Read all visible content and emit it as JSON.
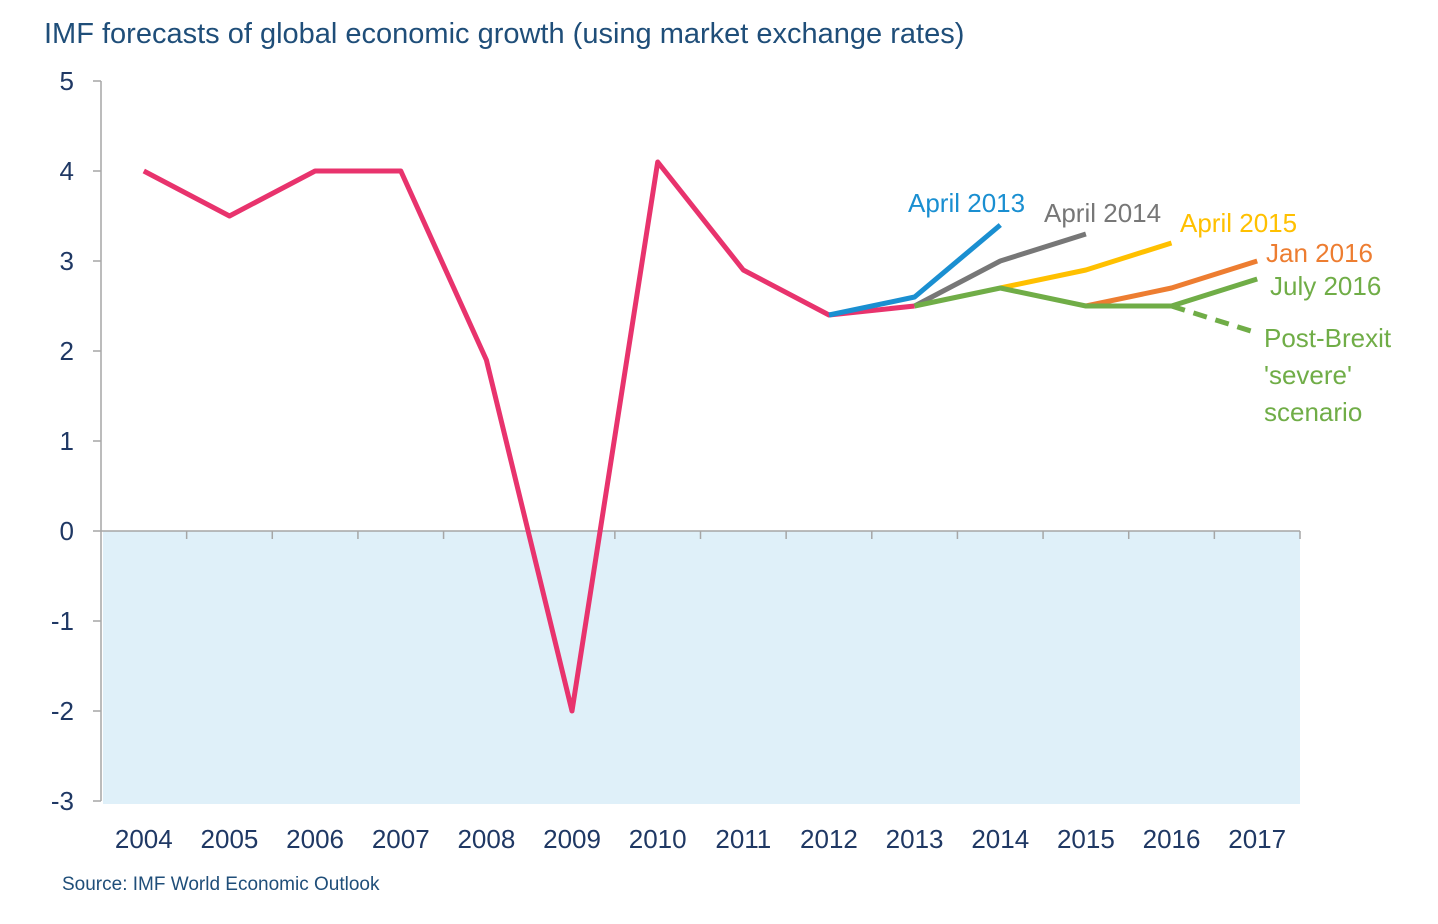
{
  "title": "IMF forecasts of global economic growth (using market exchange rates)",
  "source": "Source: IMF World Economic Outlook",
  "chart_data": {
    "type": "line",
    "title": "IMF forecasts of global economic growth (using market exchange rates)",
    "xlabel": "",
    "ylabel": "",
    "categories": [
      "2004",
      "2005",
      "2006",
      "2007",
      "2008",
      "2009",
      "2010",
      "2011",
      "2012",
      "2013",
      "2014",
      "2015",
      "2016",
      "2017"
    ],
    "ylim": [
      -3,
      5
    ],
    "yticks": [
      5,
      4,
      3,
      2,
      1,
      0,
      -1,
      -2,
      -3
    ],
    "grid": false,
    "negative_region_color": "#dff0f9",
    "series": [
      {
        "name": "",
        "color": "#e8336d",
        "dashed": false,
        "x": [
          "2004",
          "2005",
          "2006",
          "2007",
          "2008",
          "2009",
          "2010",
          "2011",
          "2012",
          "2013"
        ],
        "values": [
          4.0,
          3.5,
          4.0,
          4.0,
          1.9,
          -2.0,
          4.1,
          2.9,
          2.4,
          2.5
        ]
      },
      {
        "name": "April 2013",
        "color": "#1a8fd1",
        "dashed": false,
        "x": [
          "2012",
          "2013",
          "2014"
        ],
        "values": [
          2.4,
          2.6,
          3.4
        ]
      },
      {
        "name": "April 2014",
        "color": "#777777",
        "dashed": false,
        "x": [
          "2013",
          "2014",
          "2015"
        ],
        "values": [
          2.5,
          3.0,
          3.3
        ]
      },
      {
        "name": "April 2015",
        "color": "#ffc000",
        "dashed": false,
        "x": [
          "2014",
          "2015",
          "2016"
        ],
        "values": [
          2.7,
          2.9,
          3.2
        ]
      },
      {
        "name": "Jan 2016",
        "color": "#ed7d31",
        "dashed": false,
        "x": [
          "2015",
          "2016",
          "2017"
        ],
        "values": [
          2.5,
          2.7,
          3.0
        ]
      },
      {
        "name": "July 2016",
        "color": "#70ad47",
        "dashed": false,
        "x": [
          "2013",
          "2014",
          "2015",
          "2016",
          "2017"
        ],
        "values": [
          2.5,
          2.7,
          2.5,
          2.5,
          2.8
        ]
      },
      {
        "name": "Post-Brexit 'severe' scenario",
        "color": "#70ad47",
        "dashed": true,
        "x": [
          "2016",
          "2017"
        ],
        "values": [
          2.5,
          2.2
        ]
      }
    ],
    "annotations": [
      {
        "lines": [
          "April 2013"
        ],
        "color": "#1a8fd1"
      },
      {
        "lines": [
          "April 2014"
        ],
        "color": "#777777"
      },
      {
        "lines": [
          "April 2015"
        ],
        "color": "#ffc000"
      },
      {
        "lines": [
          "Jan 2016"
        ],
        "color": "#ed7d31"
      },
      {
        "lines": [
          "July 2016"
        ],
        "color": "#70ad47"
      },
      {
        "lines": [
          "Post-Brexit",
          "'severe'",
          "scenario"
        ],
        "color": "#70ad47"
      }
    ]
  }
}
